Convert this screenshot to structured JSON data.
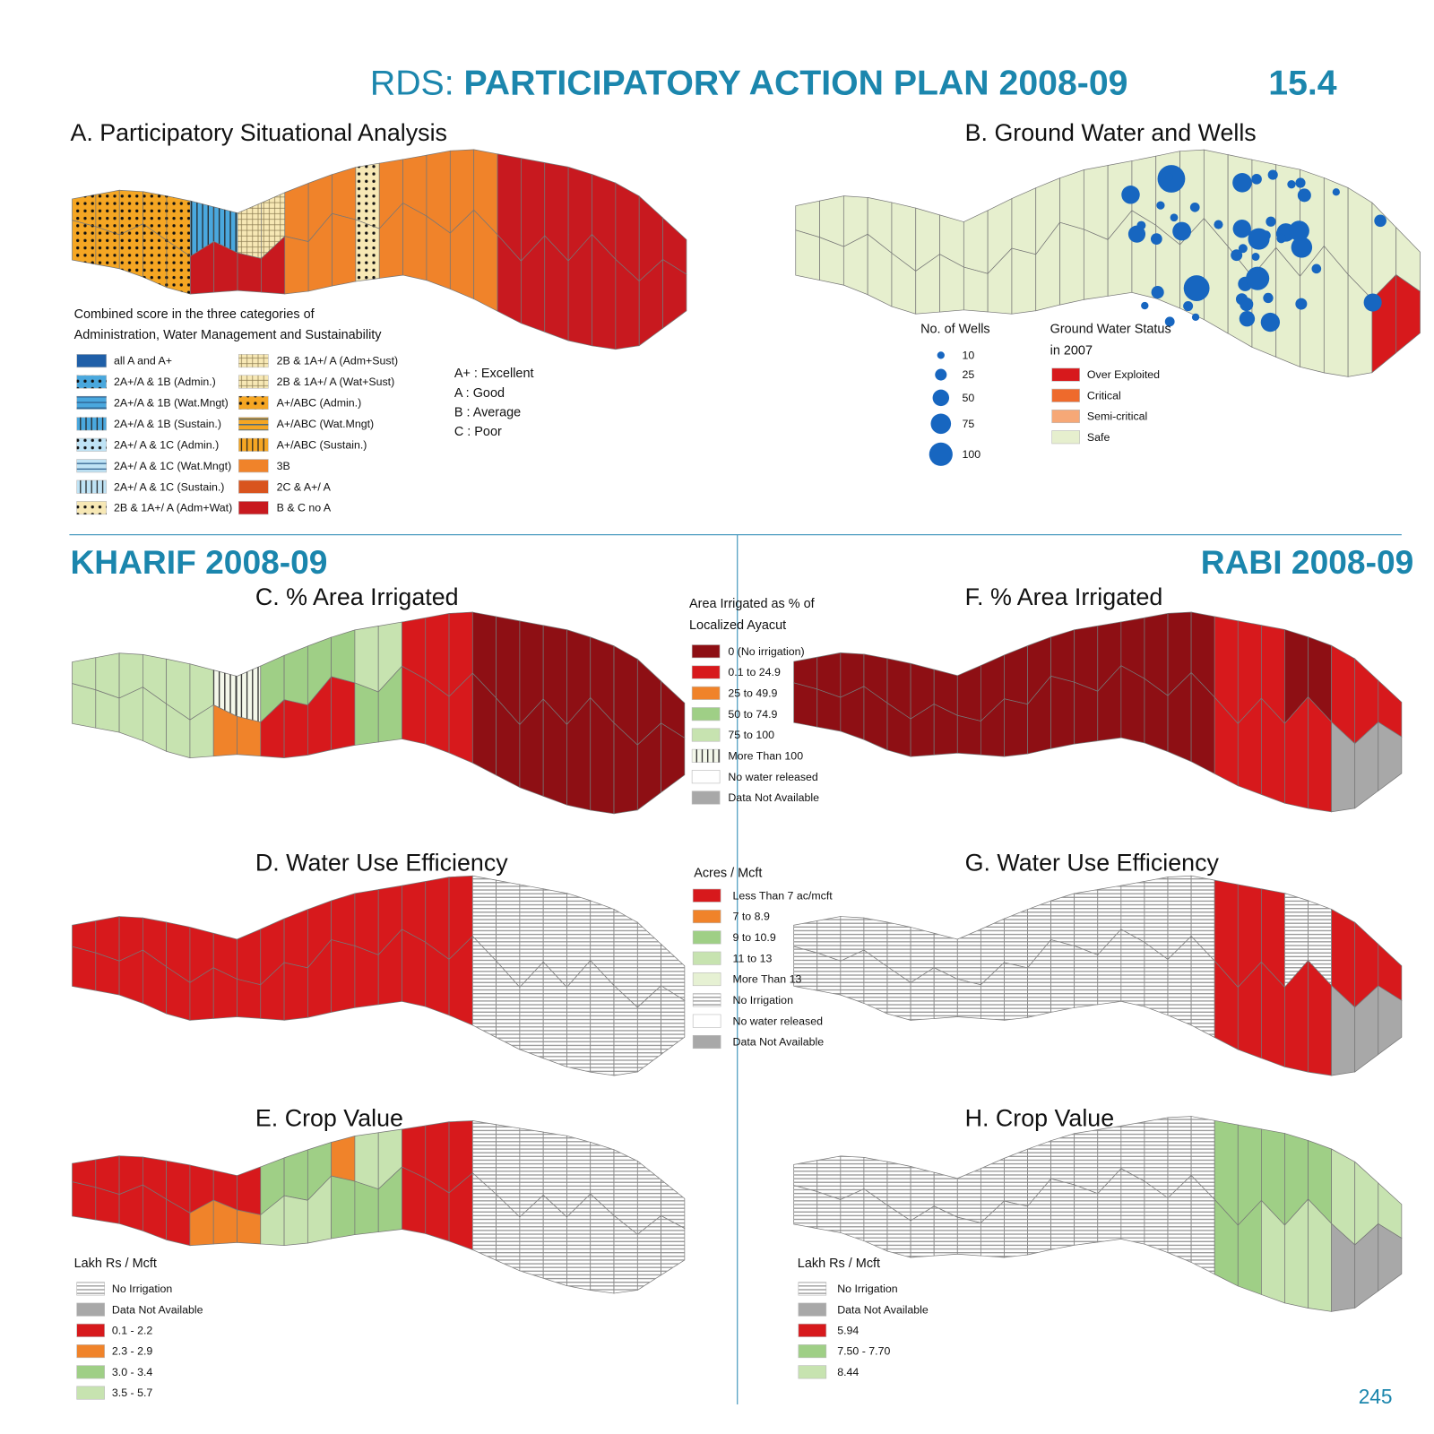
{
  "header": {
    "prefix": "RDS: ",
    "title": "PARTICIPATORY ACTION PLAN 2008-09",
    "number": "15.4"
  },
  "panel_a": {
    "title": "A. Participatory Situational Analysis",
    "legend_title": [
      "Combined score in  the three categories of",
      "Administration, Water Management and Sustainability"
    ],
    "legend": [
      {
        "label": "all A and A+",
        "color": "#1f5fa8"
      },
      {
        "label": "2A+/A & 1B (Admin.)",
        "color": "#4aa8de",
        "pattern": "dots"
      },
      {
        "label": "2A+/A & 1B (Wat.Mngt)",
        "color": "#4aa8de",
        "pattern": "hlines"
      },
      {
        "label": "2A+/A & 1B (Sustain.)",
        "color": "#4aa8de",
        "pattern": "vlines"
      },
      {
        "label": "2A+/ A & 1C (Admin.)",
        "color": "#bfe3f5",
        "pattern": "dots"
      },
      {
        "label": "2A+/ A & 1C (Wat.Mngt)",
        "color": "#bfe3f5",
        "pattern": "hlines"
      },
      {
        "label": "2A+/ A & 1C (Sustain.)",
        "color": "#bfe3f5",
        "pattern": "vlines"
      },
      {
        "label": "2B & 1A+/ A (Adm+Wat)",
        "color": "#f7e8b5",
        "pattern": "dots"
      },
      {
        "label": "2B & 1A+/ A (Adm+Sust)",
        "color": "#f7e8b5",
        "pattern": "grid"
      },
      {
        "label": "2B & 1A+/ A (Wat+Sust)",
        "color": "#f7e8b5",
        "pattern": "grid"
      },
      {
        "label": "A+/ABC (Admin.)",
        "color": "#f5a623",
        "pattern": "dots"
      },
      {
        "label": "A+/ABC (Wat.Mngt)",
        "color": "#f5a623",
        "pattern": "hlines"
      },
      {
        "label": "A+/ABC (Sustain.)",
        "color": "#f5a623",
        "pattern": "vlines"
      },
      {
        "label": "3B",
        "color": "#f0832a"
      },
      {
        "label": "2C & A+/ A",
        "color": "#d9541e"
      },
      {
        "label": "B & C no A",
        "color": "#c8191f"
      }
    ],
    "key": [
      "A+ : Excellent",
      "A : Good",
      "B : Average",
      "C : Poor"
    ]
  },
  "panel_b": {
    "title": "B. Ground Water and Wells",
    "wells_title": "No. of Wells",
    "wells_sizes": [
      10,
      25,
      50,
      75,
      100
    ],
    "status_title": [
      "Ground Water Status",
      "in 2007"
    ],
    "status_legend": [
      {
        "label": "Over Exploited",
        "color": "#d7191c"
      },
      {
        "label": "Critical",
        "color": "#ee6a2c"
      },
      {
        "label": "Semi-critical",
        "color": "#f6a877"
      },
      {
        "label": "Safe",
        "color": "#e6efce"
      }
    ]
  },
  "kharif": {
    "title": "KHARIF 2008-09",
    "c_title": "C. % Area Irrigated",
    "d_title": "D. Water Use Efficiency",
    "e_title": "E. Crop Value"
  },
  "rabi": {
    "title": "RABI 2008-09",
    "f_title": "F. % Area Irrigated",
    "g_title": "G. Water Use Efficiency",
    "h_title": "H. Crop Value"
  },
  "irrigated_legend": {
    "title": [
      "Area Irrigated as % of",
      "Localized Ayacut"
    ],
    "items": [
      {
        "label": "0 (No irrigation)",
        "color": "#8e0f14"
      },
      {
        "label": "0.1 to 24.9",
        "color": "#d7191c"
      },
      {
        "label": "25 to 49.9",
        "color": "#f0832a"
      },
      {
        "label": "50 to 74.9",
        "color": "#9fcf86"
      },
      {
        "label": "75 to 100",
        "color": "#c7e3b0"
      },
      {
        "label": "More Than 100",
        "color": "#f4f8ea",
        "pattern": "vlines"
      },
      {
        "label": "No water released",
        "color": "#ffffff"
      },
      {
        "label": "Data  Not Available",
        "color": "#a8a8a8"
      }
    ]
  },
  "efficiency_legend": {
    "title": "Acres / Mcft",
    "items": [
      {
        "label": "Less Than 7 ac/mcft",
        "color": "#d7191c"
      },
      {
        "label": "7 to 8.9",
        "color": "#f0832a"
      },
      {
        "label": "9 to 10.9",
        "color": "#9fcf86"
      },
      {
        "label": "11 to 13",
        "color": "#c7e3b0"
      },
      {
        "label": "More Than 13",
        "color": "#e6f1d3"
      },
      {
        "label": "No Irrigation",
        "color": "#ffffff",
        "pattern": "stripes"
      },
      {
        "label": "No water released",
        "color": "#ffffff"
      },
      {
        "label": "Data  Not Available",
        "color": "#a8a8a8"
      }
    ]
  },
  "crop_legend_kharif": {
    "title": "Lakh Rs / Mcft",
    "items": [
      {
        "label": "No Irrigation",
        "color": "#ffffff",
        "pattern": "stripes"
      },
      {
        "label": "Data  Not Available",
        "color": "#a8a8a8"
      },
      {
        "label": "0.1 - 2.2",
        "color": "#d7191c"
      },
      {
        "label": "2.3 - 2.9",
        "color": "#f0832a"
      },
      {
        "label": "3.0 - 3.4",
        "color": "#9fcf86"
      },
      {
        "label": "3.5 - 5.7",
        "color": "#c7e3b0"
      }
    ]
  },
  "crop_legend_rabi": {
    "title": "Lakh Rs / Mcft",
    "items": [
      {
        "label": "No Irrigation",
        "color": "#ffffff",
        "pattern": "stripes"
      },
      {
        "label": "Data  Not Available",
        "color": "#a8a8a8"
      },
      {
        "label": "5.94",
        "color": "#d7191c"
      },
      {
        "label": "7.50 - 7.70",
        "color": "#9fcf86"
      },
      {
        "label": "8.44",
        "color": "#c7e3b0"
      }
    ]
  },
  "page_number": "245"
}
